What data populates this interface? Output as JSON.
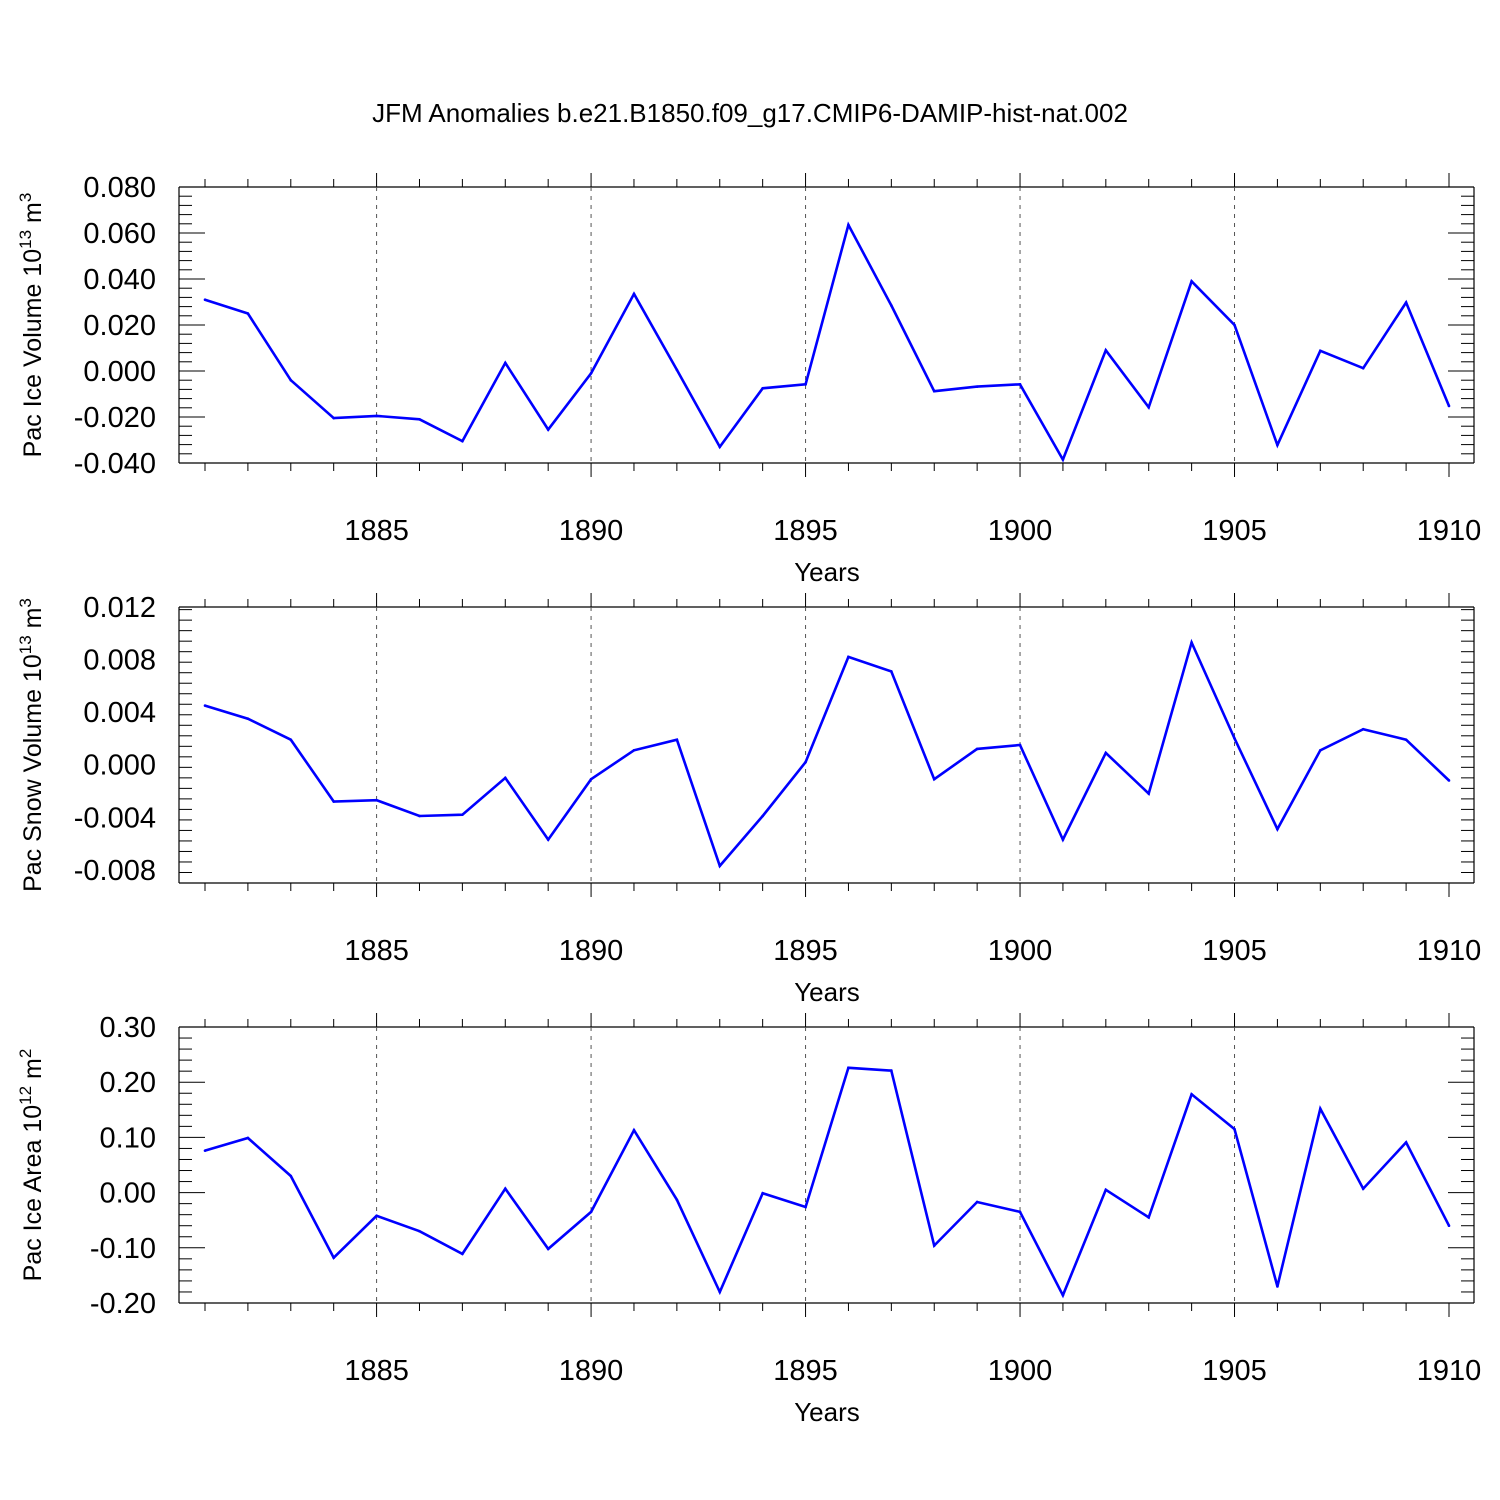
{
  "figure": {
    "title": "JFM Anomalies b.e21.B1850.f09_g17.CMIP6-DAMIP-hist-nat.002"
  },
  "chart_data": [
    {
      "type": "line",
      "title": "",
      "xlabel": "Years",
      "ylabel": "Pac Ice Volume 10^13 m^3",
      "ylabel_parts": {
        "prefix": "Pac Ice Volume 10",
        "exp": "13",
        "unit": " m",
        "unit_exp": "3"
      },
      "xlim": [
        1881,
        1910
      ],
      "ylim": [
        -0.04,
        0.08
      ],
      "x_ticks": [
        1885,
        1890,
        1895,
        1900,
        1905,
        1910
      ],
      "x_tick_labels": [
        "1885",
        "1890",
        "1895",
        "1900",
        "1905",
        "1910"
      ],
      "y_ticks": [
        -0.04,
        -0.02,
        0.0,
        0.02,
        0.04,
        0.06,
        0.08
      ],
      "y_tick_labels": [
        "-0.040",
        "-0.020",
        "0.000",
        "0.020",
        "0.040",
        "0.060",
        "0.080"
      ],
      "grid": "dashed vertical at major x ticks",
      "line_color": "#0000ff",
      "x": [
        1881,
        1882,
        1883,
        1884,
        1885,
        1886,
        1887,
        1888,
        1889,
        1890,
        1891,
        1892,
        1893,
        1894,
        1895,
        1896,
        1897,
        1898,
        1899,
        1900,
        1901,
        1902,
        1903,
        1904,
        1905,
        1906,
        1907,
        1908,
        1909,
        1910
      ],
      "values": [
        0.031,
        0.025,
        -0.004,
        -0.0205,
        -0.0195,
        -0.021,
        -0.0305,
        0.0035,
        -0.0255,
        -0.001,
        0.0335,
        0.0005,
        -0.033,
        -0.0075,
        -0.0058,
        0.0635,
        0.0285,
        -0.0088,
        -0.0068,
        -0.0058,
        -0.0385,
        0.009,
        -0.0158,
        0.039,
        0.02,
        -0.0322,
        0.0088,
        0.0012,
        0.0298,
        -0.0152
      ]
    },
    {
      "type": "line",
      "title": "",
      "xlabel": "Years",
      "ylabel": "Pac Snow Volume 10^13 m^3",
      "ylabel_parts": {
        "prefix": "Pac Snow Volume 10",
        "exp": "13",
        "unit": " m",
        "unit_exp": "3"
      },
      "xlim": [
        1881,
        1910
      ],
      "ylim": [
        -0.009,
        0.012
      ],
      "x_ticks": [
        1885,
        1890,
        1895,
        1900,
        1905,
        1910
      ],
      "x_tick_labels": [
        "1885",
        "1890",
        "1895",
        "1900",
        "1905",
        "1910"
      ],
      "y_ticks": [
        -0.008,
        -0.004,
        0.0,
        0.004,
        0.008,
        0.012
      ],
      "y_tick_labels": [
        "-0.008",
        "-0.004",
        "0.000",
        "0.004",
        "0.008",
        "0.012"
      ],
      "grid": "dashed vertical at major x ticks",
      "line_color": "#0000ff",
      "x": [
        1881,
        1882,
        1883,
        1884,
        1885,
        1886,
        1887,
        1888,
        1889,
        1890,
        1891,
        1892,
        1893,
        1894,
        1895,
        1896,
        1897,
        1898,
        1899,
        1900,
        1901,
        1902,
        1903,
        1904,
        1905,
        1906,
        1907,
        1908,
        1909,
        1910
      ],
      "values": [
        0.0045,
        0.0035,
        0.0019,
        -0.0028,
        -0.0027,
        -0.0039,
        -0.0038,
        -0.001,
        -0.0057,
        -0.0011,
        0.0011,
        0.0019,
        -0.0077,
        -0.0039,
        0.0002,
        0.0082,
        0.0071,
        -0.0011,
        0.0012,
        0.0015,
        -0.0057,
        0.0009,
        -0.0022,
        0.0093,
        0.002,
        -0.0049,
        0.0011,
        0.0027,
        0.0019,
        -0.0012
      ]
    },
    {
      "type": "line",
      "title": "",
      "xlabel": "Years",
      "ylabel": "Pac Ice Area 10^12 m^2",
      "ylabel_parts": {
        "prefix": "Pac Ice Area 10",
        "exp": "12",
        "unit": " m",
        "unit_exp": "2"
      },
      "xlim": [
        1881,
        1910
      ],
      "ylim": [
        -0.2,
        0.3
      ],
      "x_ticks": [
        1885,
        1890,
        1895,
        1900,
        1905,
        1910
      ],
      "x_tick_labels": [
        "1885",
        "1890",
        "1895",
        "1900",
        "1905",
        "1910"
      ],
      "y_ticks": [
        -0.2,
        -0.1,
        0.0,
        0.1,
        0.2,
        0.3
      ],
      "y_tick_labels": [
        "-0.20",
        "-0.10",
        "0.00",
        "0.10",
        "0.20",
        "0.30"
      ],
      "grid": "dashed vertical at major x ticks",
      "line_color": "#0000ff",
      "x": [
        1881,
        1882,
        1883,
        1884,
        1885,
        1886,
        1887,
        1888,
        1889,
        1890,
        1891,
        1892,
        1893,
        1894,
        1895,
        1896,
        1897,
        1898,
        1899,
        1900,
        1901,
        1902,
        1903,
        1904,
        1905,
        1906,
        1907,
        1908,
        1909,
        1910
      ],
      "values": [
        0.076,
        0.099,
        0.03,
        -0.118,
        -0.042,
        -0.07,
        -0.111,
        0.007,
        -0.102,
        -0.035,
        0.113,
        -0.013,
        -0.18,
        -0.001,
        -0.026,
        0.226,
        0.221,
        -0.096,
        -0.017,
        -0.035,
        -0.186,
        0.005,
        -0.045,
        0.178,
        0.115,
        -0.17,
        0.152,
        0.007,
        0.091,
        -0.06
      ]
    }
  ]
}
